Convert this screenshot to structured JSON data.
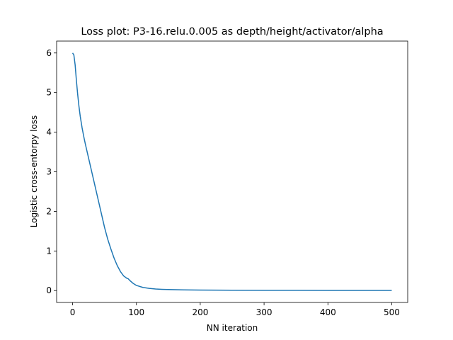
{
  "chart_data": {
    "type": "line",
    "title": "Loss plot: P3-16.relu.0.005 as depth/height/activator/alpha",
    "xlabel": "NN iteration",
    "ylabel": "Logistic cross-entorpy loss",
    "xlim": [
      -25,
      525
    ],
    "ylim": [
      -0.3,
      6.3
    ],
    "xticks": [
      0,
      100,
      200,
      300,
      400,
      500
    ],
    "yticks": [
      0,
      1,
      2,
      3,
      4,
      5,
      6
    ],
    "grid": false,
    "series": [
      {
        "color": "#1f77b4",
        "x": [
          0,
          2,
          4,
          6,
          8,
          10,
          12,
          15,
          18,
          20,
          25,
          30,
          35,
          40,
          45,
          50,
          55,
          60,
          65,
          70,
          75,
          80,
          85,
          87,
          90,
          95,
          100,
          110,
          120,
          130,
          140,
          150,
          175,
          200,
          250,
          300,
          350,
          400,
          450,
          500
        ],
        "y": [
          6.0,
          5.95,
          5.7,
          5.3,
          4.95,
          4.65,
          4.4,
          4.1,
          3.85,
          3.7,
          3.35,
          3.0,
          2.65,
          2.3,
          1.95,
          1.6,
          1.3,
          1.05,
          0.82,
          0.63,
          0.48,
          0.37,
          0.31,
          0.3,
          0.25,
          0.18,
          0.13,
          0.08,
          0.055,
          0.04,
          0.032,
          0.026,
          0.018,
          0.013,
          0.009,
          0.007,
          0.006,
          0.005,
          0.004,
          0.004
        ]
      }
    ]
  }
}
